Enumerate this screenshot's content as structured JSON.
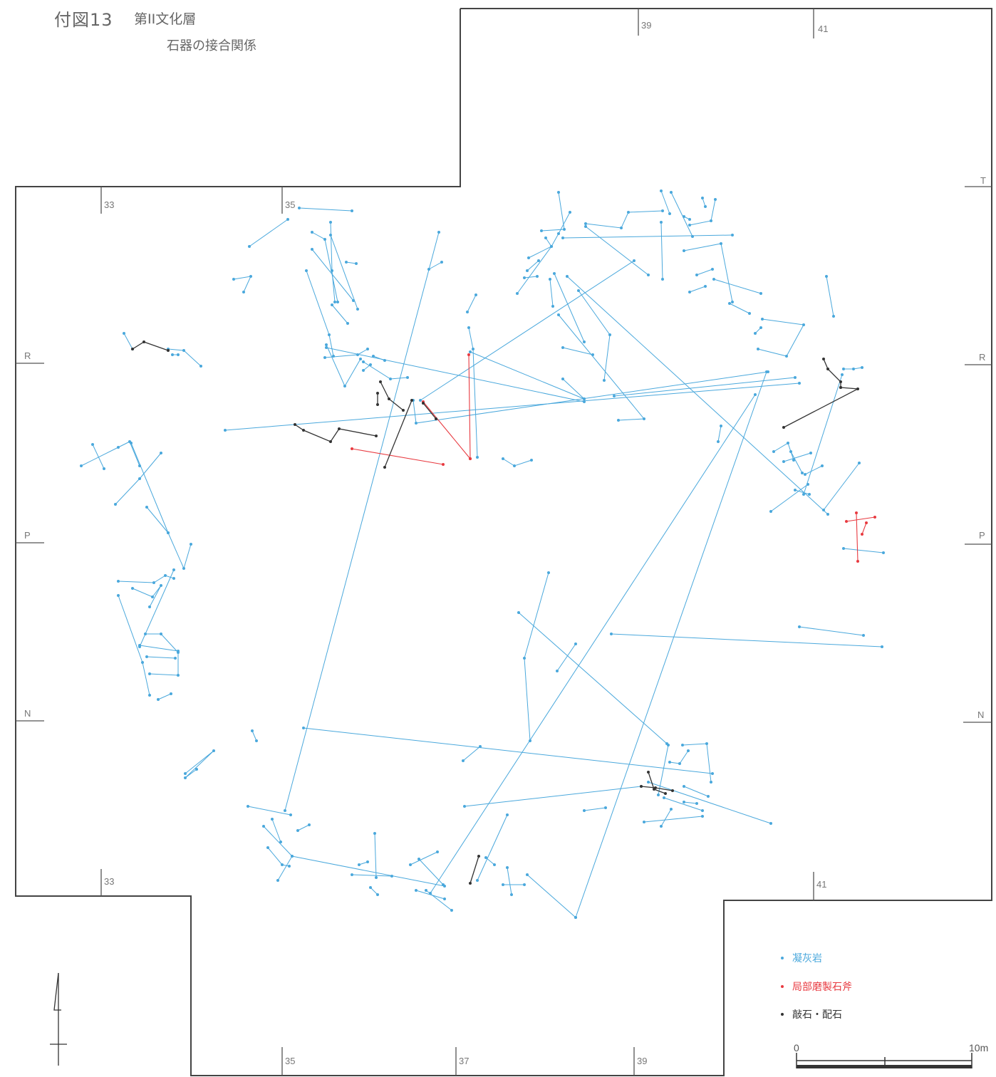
{
  "title": {
    "figure_no": "付図13",
    "layer": "第II文化層",
    "description": "石器の接合関係"
  },
  "grid_labels": {
    "top": [
      "39",
      "41"
    ],
    "upper": [
      "33",
      "35"
    ],
    "lower": [
      "33",
      "41"
    ],
    "bottom": [
      "35",
      "37",
      "39"
    ],
    "left": [
      "R",
      "P",
      "N"
    ],
    "right": [
      "T",
      "R",
      "P",
      "N"
    ]
  },
  "legend": [
    {
      "label": "凝灰岩",
      "color": "#4aa8dc"
    },
    {
      "label": "局部磨製石斧",
      "color": "#e83a40"
    },
    {
      "label": "敲石・配石",
      "color": "#333333"
    }
  ],
  "scale": {
    "zero": "0",
    "max": "10m"
  },
  "colors": {
    "outline": "#444444",
    "blue": "#4aa8dc",
    "red": "#e83a40",
    "black": "#333333"
  },
  "icons": {
    "north_arrow": "north-arrow-icon"
  }
}
